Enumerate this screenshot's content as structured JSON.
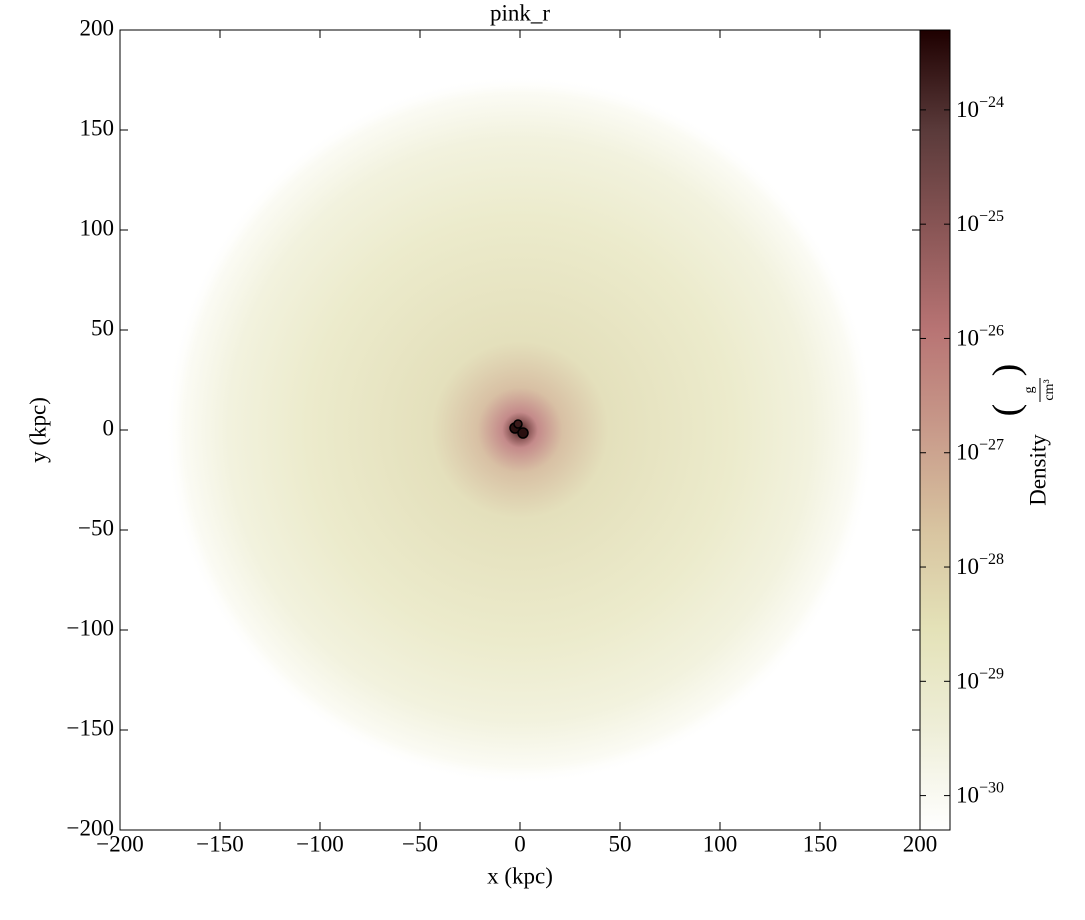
{
  "chart_data": {
    "type": "image",
    "title": "pink_r",
    "xlabel": "x  (kpc)",
    "ylabel": "y  (kpc)",
    "xlim": [
      -200,
      200
    ],
    "ylim": [
      -200,
      200
    ],
    "xticks": [
      {
        "value": -200,
        "label": "−200"
      },
      {
        "value": -150,
        "label": "−150"
      },
      {
        "value": -100,
        "label": "−100"
      },
      {
        "value": -50,
        "label": "−50"
      },
      0,
      50,
      100,
      150,
      200
    ],
    "yticks": [
      {
        "value": -200,
        "label": "−200"
      },
      {
        "value": -150,
        "label": "−150"
      },
      {
        "value": -100,
        "label": "−100"
      },
      {
        "value": -50,
        "label": "−50"
      },
      0,
      50,
      100,
      150,
      200
    ],
    "colorbar": {
      "label": "Density",
      "unit_numerator": "g",
      "unit_denominator": "cm³",
      "log_scale": true,
      "clim": [
        5e-31,
        5e-24
      ],
      "ticks": [
        {
          "value": 1e-30,
          "label": "10",
          "exponent": "−30"
        },
        {
          "value": 1e-29,
          "label": "10",
          "exponent": "−29"
        },
        {
          "value": 1e-28,
          "label": "10",
          "exponent": "−28"
        },
        {
          "value": 1e-27,
          "label": "10",
          "exponent": "−27"
        },
        {
          "value": 1e-26,
          "label": "10",
          "exponent": "−26"
        },
        {
          "value": 1e-25,
          "label": "10",
          "exponent": "−25"
        },
        {
          "value": 1e-24,
          "label": "10",
          "exponent": "−24"
        }
      ],
      "colors": [
        "#ffffff",
        "#eeeed8",
        "#e4e2b8",
        "#d8c4a0",
        "#c89a8a",
        "#b87474",
        "#8a5656",
        "#5a3a3a",
        "#1e0000"
      ]
    }
  }
}
